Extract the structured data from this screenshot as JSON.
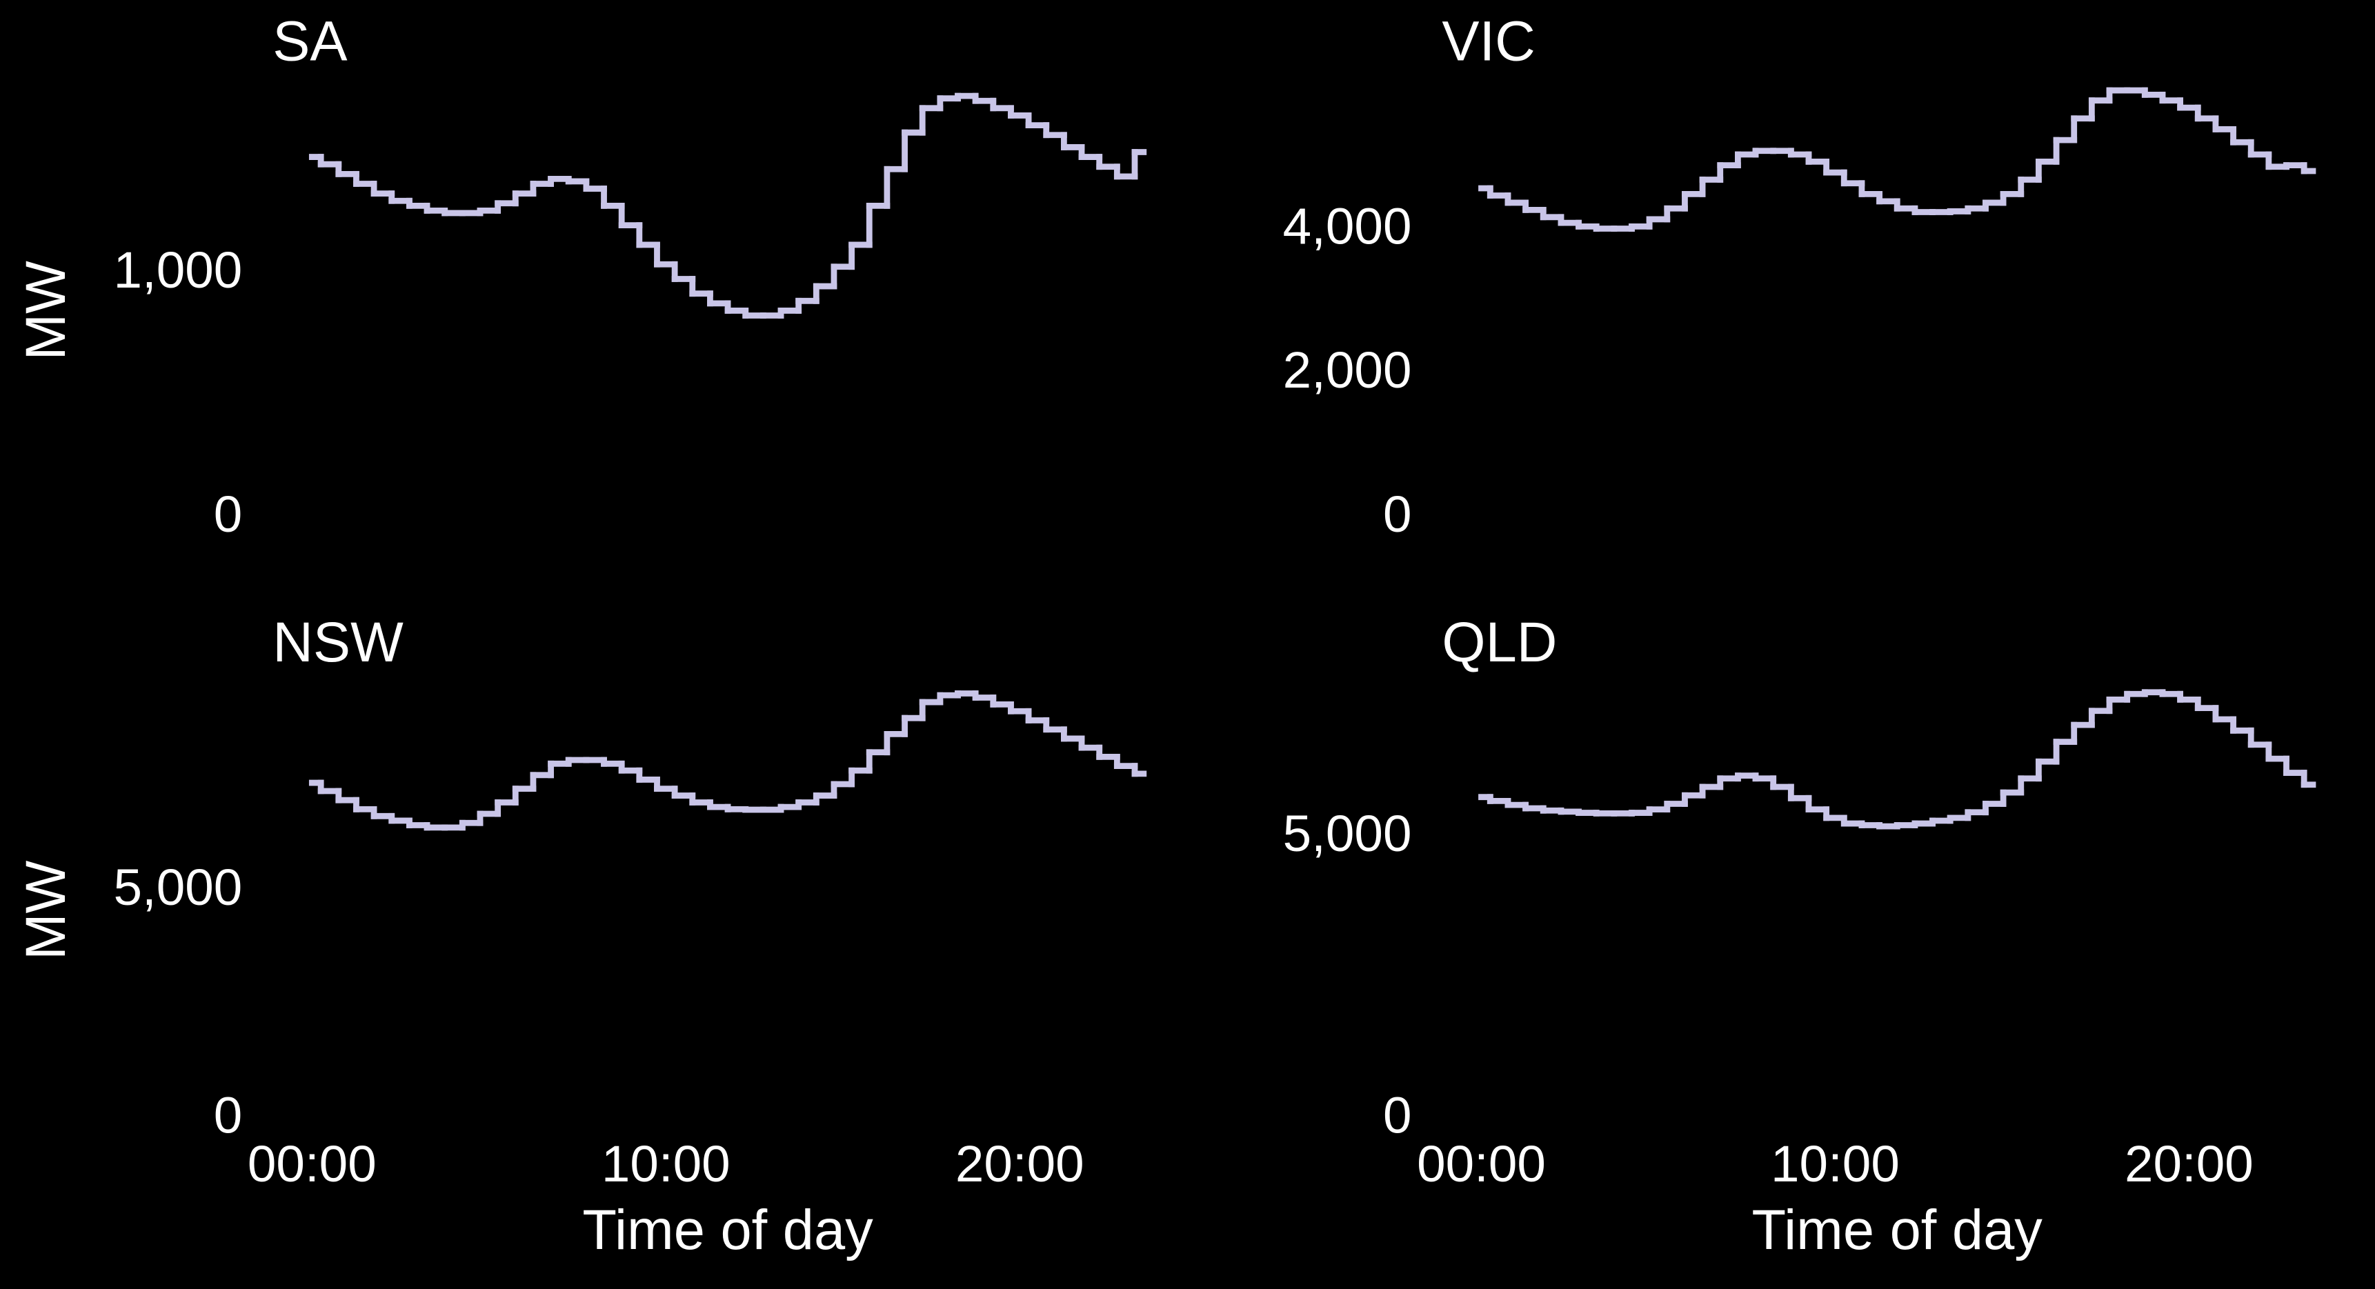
{
  "chart_data": [
    {
      "type": "line",
      "step": "mid",
      "title": "SA",
      "ylabel": "MW",
      "color": "#c9c5e8",
      "x": [
        0,
        0.5,
        1,
        1.5,
        2,
        2.5,
        3,
        3.5,
        4,
        4.5,
        5,
        5.5,
        6,
        6.5,
        7,
        7.5,
        8,
        8.5,
        9,
        9.5,
        10,
        10.5,
        11,
        11.5,
        12,
        12.5,
        13,
        13.5,
        14,
        14.5,
        15,
        15.5,
        16,
        16.5,
        17,
        17.5,
        18,
        18.5,
        19,
        19.5,
        20,
        20.5,
        21,
        21.5,
        22,
        22.5,
        23,
        23.5
      ],
      "values": [
        1480,
        1450,
        1410,
        1370,
        1330,
        1300,
        1280,
        1260,
        1250,
        1250,
        1260,
        1290,
        1330,
        1370,
        1390,
        1380,
        1350,
        1280,
        1200,
        1120,
        1040,
        980,
        920,
        880,
        850,
        830,
        830,
        850,
        890,
        950,
        1030,
        1120,
        1280,
        1430,
        1580,
        1680,
        1720,
        1730,
        1710,
        1680,
        1650,
        1610,
        1570,
        1520,
        1480,
        1440,
        1400,
        1500
      ],
      "xlim": [
        0,
        23.5
      ],
      "ylim": [
        0,
        1800
      ],
      "yticks": [
        0,
        {
          "value": 1000,
          "label": "1,000"
        }
      ]
    },
    {
      "type": "line",
      "step": "mid",
      "title": "VIC",
      "color": "#c9c5e8",
      "x": [
        0,
        0.5,
        1,
        1.5,
        2,
        2.5,
        3,
        3.5,
        4,
        4.5,
        5,
        5.5,
        6,
        6.5,
        7,
        7.5,
        8,
        8.5,
        9,
        9.5,
        10,
        10.5,
        11,
        11.5,
        12,
        12.5,
        13,
        13.5,
        14,
        14.5,
        15,
        15.5,
        16,
        16.5,
        17,
        17.5,
        18,
        18.5,
        19,
        19.5,
        20,
        20.5,
        21,
        21.5,
        22,
        22.5,
        23,
        23.5
      ],
      "values": [
        4580,
        4480,
        4380,
        4280,
        4180,
        4100,
        4050,
        4020,
        4020,
        4050,
        4150,
        4300,
        4500,
        4700,
        4900,
        5050,
        5100,
        5100,
        5050,
        4950,
        4800,
        4650,
        4500,
        4400,
        4300,
        4250,
        4250,
        4260,
        4300,
        4380,
        4500,
        4700,
        4950,
        5250,
        5550,
        5800,
        5940,
        5940,
        5880,
        5800,
        5700,
        5550,
        5400,
        5220,
        5050,
        4880,
        4900,
        4820
      ],
      "xlim": [
        0,
        23.5
      ],
      "ylim": [
        0,
        6100
      ],
      "yticks": [
        0,
        {
          "value": 2000,
          "label": "2,000"
        },
        {
          "value": 4000,
          "label": "4,000"
        }
      ]
    },
    {
      "type": "line",
      "step": "mid",
      "title": "NSW",
      "ylabel": "MW",
      "xlabel": "Time of day",
      "color": "#c9c5e8",
      "x": [
        0,
        0.5,
        1,
        1.5,
        2,
        2.5,
        3,
        3.5,
        4,
        4.5,
        5,
        5.5,
        6,
        6.5,
        7,
        7.5,
        8,
        8.5,
        9,
        9.5,
        10,
        10.5,
        11,
        11.5,
        12,
        12.5,
        13,
        13.5,
        14,
        14.5,
        15,
        15.5,
        16,
        16.5,
        17,
        17.5,
        18,
        18.5,
        19,
        19.5,
        20,
        20.5,
        21,
        21.5,
        22,
        22.5,
        23,
        23.5
      ],
      "values": [
        7380,
        7200,
        7000,
        6800,
        6650,
        6550,
        6450,
        6400,
        6400,
        6500,
        6700,
        6950,
        7250,
        7550,
        7800,
        7880,
        7880,
        7800,
        7650,
        7450,
        7250,
        7100,
        6950,
        6850,
        6800,
        6790,
        6790,
        6850,
        6950,
        7100,
        7350,
        7650,
        8050,
        8450,
        8800,
        9150,
        9300,
        9340,
        9250,
        9100,
        8950,
        8750,
        8550,
        8350,
        8150,
        7950,
        7750,
        7580
      ],
      "xlim": [
        0,
        23.5
      ],
      "ylim": [
        0,
        9700
      ],
      "yticks": [
        0,
        {
          "value": 5000,
          "label": "5,000"
        }
      ],
      "xticks": [
        {
          "value": 0,
          "label": "00:00"
        },
        {
          "value": 10,
          "label": "10:00"
        },
        {
          "value": 20,
          "label": "20:00"
        }
      ]
    },
    {
      "type": "line",
      "step": "mid",
      "title": "QLD",
      "xlabel": "Time of day",
      "color": "#c9c5e8",
      "x": [
        0,
        0.5,
        1,
        1.5,
        2,
        2.5,
        3,
        3.5,
        4,
        4.5,
        5,
        5.5,
        6,
        6.5,
        7,
        7.5,
        8,
        8.5,
        9,
        9.5,
        10,
        10.5,
        11,
        11.5,
        12,
        12.5,
        13,
        13.5,
        14,
        14.5,
        15,
        15.5,
        16,
        16.5,
        17,
        17.5,
        18,
        18.5,
        19,
        19.5,
        20,
        20.5,
        21,
        21.5,
        22,
        22.5,
        23,
        23.5
      ],
      "values": [
        5720,
        5650,
        5580,
        5520,
        5480,
        5460,
        5440,
        5430,
        5430,
        5440,
        5500,
        5600,
        5750,
        5900,
        6050,
        6100,
        6050,
        5900,
        5700,
        5500,
        5350,
        5250,
        5220,
        5200,
        5220,
        5250,
        5300,
        5350,
        5450,
        5600,
        5800,
        6050,
        6350,
        6700,
        7000,
        7250,
        7450,
        7550,
        7580,
        7550,
        7450,
        7300,
        7100,
        6900,
        6650,
        6400,
        6150,
        5940
      ],
      "xlim": [
        0,
        23.5
      ],
      "ylim": [
        0,
        7850
      ],
      "yticks": [
        0,
        {
          "value": 5000,
          "label": "5,000"
        }
      ],
      "xticks": [
        {
          "value": 0,
          "label": "00:00"
        },
        {
          "value": 10,
          "label": "10:00"
        },
        {
          "value": 20,
          "label": "20:00"
        }
      ]
    }
  ]
}
